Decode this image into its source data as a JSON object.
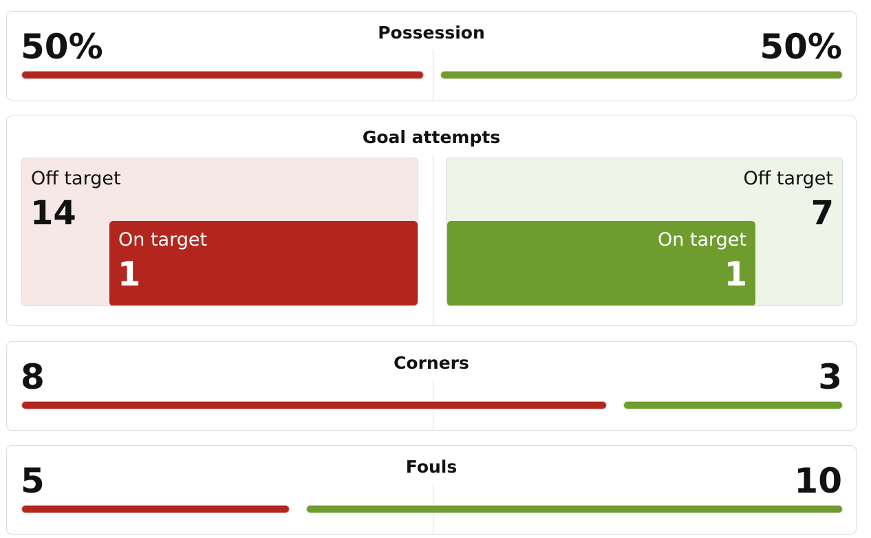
{
  "stats": [
    {
      "title": "Possession",
      "home": {
        "value": 50,
        "label": "50%"
      },
      "away": {
        "value": 50,
        "label": "50%"
      }
    },
    {
      "title": "Corners",
      "home": 8,
      "away": 3
    },
    {
      "title": "Fouls",
      "home": 5,
      "away": 10
    }
  ],
  "goal_attempts": {
    "title": "Goal attempts",
    "home": {
      "off_target_label": "Off target",
      "off_target": 14,
      "on_target_label": "On target",
      "on_target": 1
    },
    "away": {
      "off_target_label": "Off target",
      "off_target": 7,
      "on_target_label": "On target",
      "on_target": 1
    }
  },
  "colors": {
    "home": "#b3261e",
    "away": "#6e9c2e"
  }
}
